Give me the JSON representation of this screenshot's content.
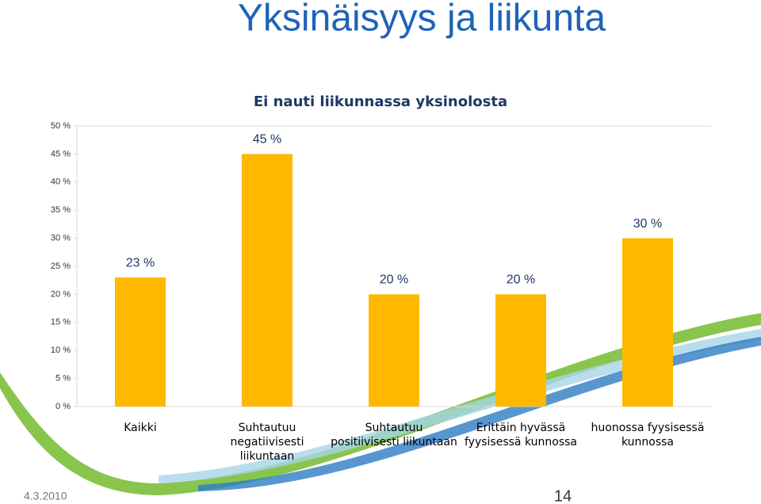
{
  "slide_title": "Yksinäisyys ja liikunta",
  "chart_data": {
    "type": "bar",
    "title": "Ei nauti liikunnassa yksinolosta",
    "categories": [
      "Kaikki",
      "Suhtautuu negatiivisesti liikuntaan",
      "Suhtautuu positiivisesti liikuntaan",
      "Erittäin hyvässä fyysisessä kunnossa",
      "huonossa fyysisessä kunnossa"
    ],
    "values": [
      23,
      45,
      20,
      20,
      30
    ],
    "value_labels": [
      "23 %",
      "45 %",
      "20 %",
      "20 %",
      "30 %"
    ],
    "color": "#ffb800",
    "ylim": [
      0,
      50
    ],
    "yticks": [
      {
        "value": 0,
        "label": "0 %"
      },
      {
        "value": 5,
        "label": "5 %"
      },
      {
        "value": 10,
        "label": "10 %"
      },
      {
        "value": 15,
        "label": "15 %"
      },
      {
        "value": 20,
        "label": "20 %"
      },
      {
        "value": 25,
        "label": "25 %"
      },
      {
        "value": 30,
        "label": "30 %"
      },
      {
        "value": 35,
        "label": "35 %"
      },
      {
        "value": 40,
        "label": "40 %"
      },
      {
        "value": 45,
        "label": "45 %"
      },
      {
        "value": 50,
        "label": "50 %"
      }
    ],
    "grid": false
  },
  "footer": {
    "date": "4.3.2010",
    "page": "14"
  }
}
